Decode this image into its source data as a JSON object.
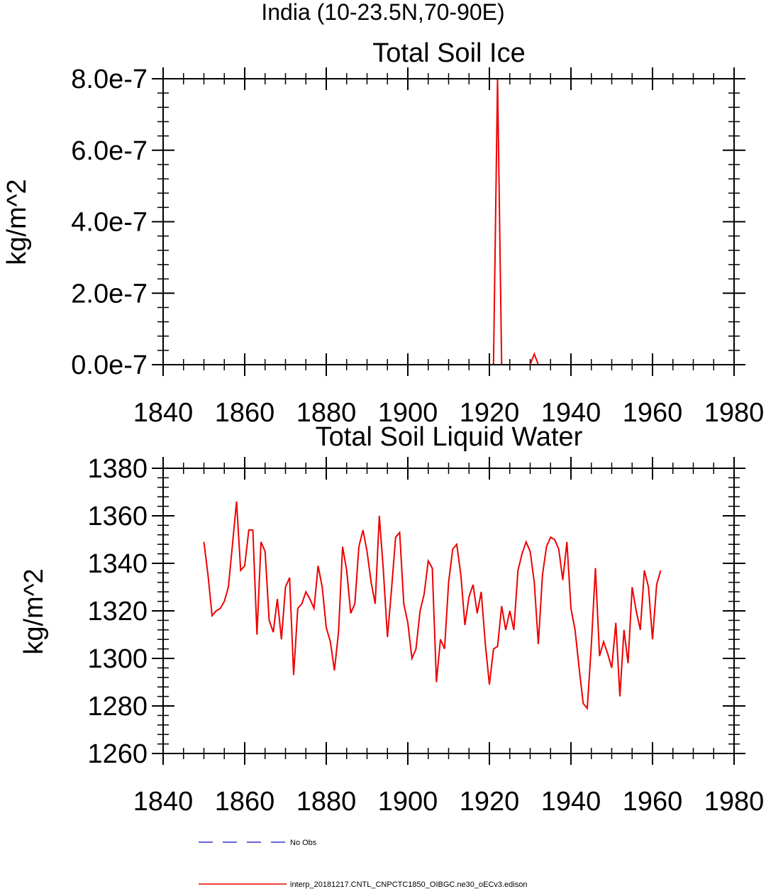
{
  "figure": {
    "title": "India (10-23.5N,70-90E)"
  },
  "legend": {
    "entries": [
      {
        "label": "No Obs",
        "color": "#3333cc",
        "style": "dashed"
      },
      {
        "label": "interp_20181217.CNTL_CNPCTC1850_OIBGC.ne30_oECv3.edison",
        "color": "#ee0000",
        "style": "solid"
      }
    ]
  },
  "chart_data": [
    {
      "type": "line",
      "title": "Total Soil Ice",
      "xlabel": "",
      "ylabel": "kg/m^2",
      "xlim": [
        1840,
        1980
      ],
      "ylim": [
        0,
        8e-07
      ],
      "xticks": [
        1840,
        1860,
        1880,
        1900,
        1920,
        1940,
        1960,
        1980
      ],
      "xtick_labels": [
        "1840",
        "1860",
        "1880",
        "1900",
        "1920",
        "1940",
        "1960",
        "1980"
      ],
      "yticks": [
        0,
        2e-07,
        4e-07,
        6e-07,
        8e-07
      ],
      "ytick_labels": [
        "0.0e-7",
        "2.0e-7",
        "4.0e-7",
        "6.0e-7",
        "8.0e-7"
      ],
      "grid": false,
      "series": [
        {
          "color": "#ee0000",
          "x": [
            1850,
            1921,
            1922,
            1923,
            1930,
            1931,
            1932,
            1962
          ],
          "values": [
            0,
            0,
            8e-07,
            0,
            0,
            3e-08,
            0,
            0
          ]
        }
      ]
    },
    {
      "type": "line",
      "title": "Total Soil Liquid Water",
      "xlabel": "",
      "ylabel": "kg/m^2",
      "xlim": [
        1840,
        1980
      ],
      "ylim": [
        1260,
        1380
      ],
      "xticks": [
        1840,
        1860,
        1880,
        1900,
        1920,
        1940,
        1960,
        1980
      ],
      "xtick_labels": [
        "1840",
        "1860",
        "1880",
        "1900",
        "1920",
        "1940",
        "1960",
        "1980"
      ],
      "yticks": [
        1260,
        1280,
        1300,
        1320,
        1340,
        1360,
        1380
      ],
      "ytick_labels": [
        "1260",
        "1280",
        "1300",
        "1320",
        "1340",
        "1360",
        "1380"
      ],
      "grid": false,
      "series": [
        {
          "color": "#ee0000",
          "x": [
            1850,
            1851,
            1852,
            1853,
            1854,
            1855,
            1856,
            1857,
            1858,
            1859,
            1860,
            1861,
            1862,
            1863,
            1864,
            1865,
            1866,
            1867,
            1868,
            1869,
            1870,
            1871,
            1872,
            1873,
            1874,
            1875,
            1876,
            1877,
            1878,
            1879,
            1880,
            1881,
            1882,
            1883,
            1884,
            1885,
            1886,
            1887,
            1888,
            1889,
            1890,
            1891,
            1892,
            1893,
            1894,
            1895,
            1896,
            1897,
            1898,
            1899,
            1900,
            1901,
            1902,
            1903,
            1904,
            1905,
            1906,
            1907,
            1908,
            1909,
            1910,
            1911,
            1912,
            1913,
            1914,
            1915,
            1916,
            1917,
            1918,
            1919,
            1920,
            1921,
            1922,
            1923,
            1924,
            1925,
            1926,
            1927,
            1928,
            1929,
            1930,
            1931,
            1932,
            1933,
            1934,
            1935,
            1936,
            1937,
            1938,
            1939,
            1940,
            1941,
            1942,
            1943,
            1944,
            1945,
            1946,
            1947,
            1948,
            1949,
            1950,
            1951,
            1952,
            1953,
            1954,
            1955,
            1956,
            1957,
            1958,
            1959,
            1960,
            1961,
            1962
          ],
          "values": [
            1349,
            1335,
            1318,
            1320,
            1321,
            1324,
            1330,
            1348,
            1366,
            1337,
            1339,
            1354,
            1354,
            1310,
            1349,
            1345,
            1316,
            1311,
            1325,
            1308,
            1330,
            1334,
            1293,
            1321,
            1323,
            1328,
            1325,
            1321,
            1339,
            1330,
            1313,
            1307,
            1295,
            1311,
            1347,
            1337,
            1319,
            1323,
            1347,
            1354,
            1345,
            1332,
            1323,
            1360,
            1337,
            1309,
            1329,
            1351,
            1353,
            1323,
            1315,
            1300,
            1304,
            1320,
            1327,
            1341,
            1338,
            1290,
            1308,
            1304,
            1332,
            1346,
            1348,
            1335,
            1314,
            1326,
            1331,
            1319,
            1328,
            1306,
            1289,
            1304,
            1305,
            1322,
            1312,
            1320,
            1312,
            1337,
            1344,
            1349,
            1345,
            1332,
            1306,
            1335,
            1347,
            1351,
            1350,
            1346,
            1333,
            1349,
            1321,
            1312,
            1296,
            1281,
            1279,
            1306,
            1338,
            1301,
            1307,
            1302,
            1296,
            1315,
            1284,
            1312,
            1298,
            1330,
            1320,
            1312,
            1337,
            1330,
            1308,
            1331,
            1337
          ]
        }
      ]
    }
  ]
}
